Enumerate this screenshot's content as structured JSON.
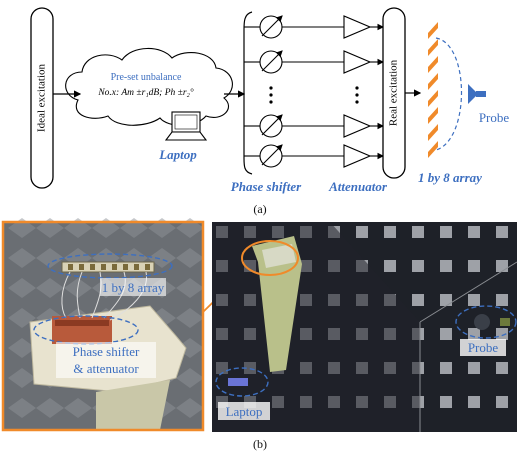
{
  "top": {
    "ideal_excitation": "Ideal excitation",
    "cloud_title": "Pre-set unbalance",
    "cloud_formula": "No.x: Am ±r₁dB; Ph ±r₂°",
    "laptop": "Laptop",
    "phase_shifter": "Phase shifter",
    "attenuator": "Attenuator",
    "real_excitation": "Real excitation",
    "array": "1 by 8 array",
    "probe": "Probe",
    "caption": "(a)"
  },
  "bottom": {
    "array": "1 by 8 array",
    "phase_shifter_line1": "Phase shifter",
    "phase_shifter_line2": "& attenuator",
    "probe": "Probe",
    "laptop": "Laptop",
    "caption": "(b)"
  },
  "colors": {
    "blue_label": "#3d6fc0",
    "orange": "#f08a2a",
    "black": "#000000"
  }
}
